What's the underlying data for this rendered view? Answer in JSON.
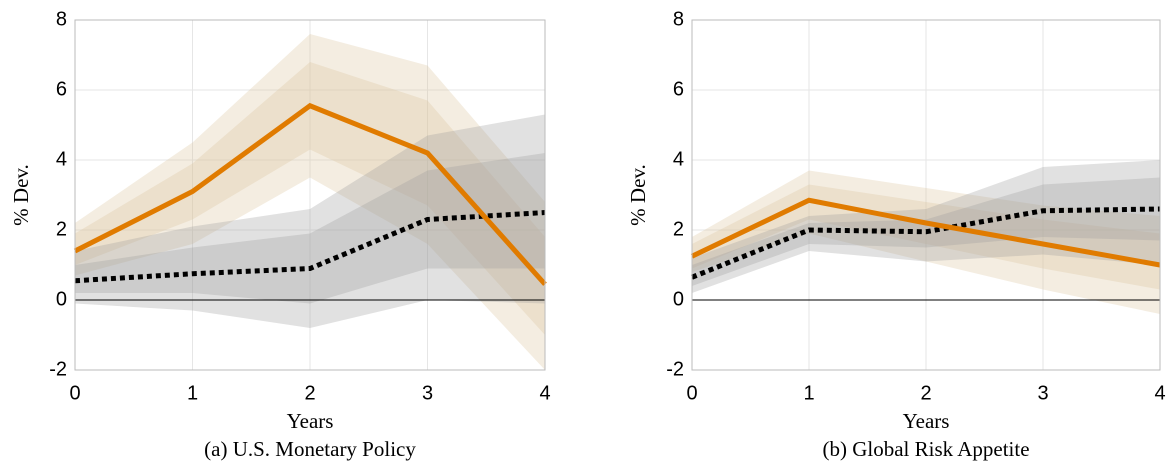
{
  "chart_data": [
    {
      "type": "line",
      "title": "(a) U.S. Monetary Policy",
      "xlabel": "Years",
      "ylabel": "% Dev.",
      "x": [
        0,
        1,
        2,
        3,
        4
      ],
      "xlim": [
        0,
        4
      ],
      "ylim": [
        -2,
        8
      ],
      "xticks": [
        0,
        1,
        2,
        3,
        4
      ],
      "yticks": [
        -2,
        0,
        2,
        4,
        6,
        8
      ],
      "grid": true,
      "series": [
        {
          "color": "#e07b00",
          "band_color": "#d9c29a",
          "dash": false,
          "values": [
            1.4,
            3.1,
            5.55,
            4.2,
            0.45
          ],
          "bands": [
            {
              "lower": [
                0.7,
                1.6,
                3.5,
                1.6,
                -2.0
              ],
              "upper": [
                2.2,
                4.5,
                7.6,
                6.7,
                2.8
              ]
            },
            {
              "lower": [
                1.0,
                2.3,
                4.3,
                2.7,
                -1.0
              ],
              "upper": [
                1.9,
                3.9,
                6.8,
                5.7,
                1.8
              ]
            }
          ]
        },
        {
          "color": "#000000",
          "band_color": "#9a9a9a",
          "dash": true,
          "values": [
            0.55,
            0.75,
            0.9,
            2.3,
            2.5
          ],
          "bands": [
            {
              "lower": [
                -0.1,
                -0.3,
                -0.8,
                0.0,
                -0.1
              ],
              "upper": [
                1.4,
                2.1,
                2.6,
                4.7,
                5.3
              ]
            },
            {
              "lower": [
                0.2,
                0.2,
                -0.1,
                0.9,
                0.9
              ],
              "upper": [
                1.0,
                1.5,
                1.9,
                3.7,
                4.2
              ]
            }
          ]
        }
      ]
    },
    {
      "type": "line",
      "title": "(b) Global Risk Appetite",
      "xlabel": "Years",
      "ylabel": "% Dev.",
      "x": [
        0,
        1,
        2,
        3,
        4
      ],
      "xlim": [
        0,
        4
      ],
      "ylim": [
        -2,
        8
      ],
      "xticks": [
        0,
        1,
        2,
        3,
        4
      ],
      "yticks": [
        -2,
        0,
        2,
        4,
        6,
        8
      ],
      "grid": true,
      "series": [
        {
          "color": "#e07b00",
          "band_color": "#d9c29a",
          "dash": false,
          "values": [
            1.25,
            2.85,
            2.2,
            1.6,
            1.0
          ],
          "bands": [
            {
              "lower": [
                0.8,
                1.9,
                1.1,
                0.3,
                -0.4
              ],
              "upper": [
                1.8,
                3.7,
                3.2,
                2.7,
                2.4
              ]
            },
            {
              "lower": [
                0.9,
                2.3,
                1.6,
                0.9,
                0.3
              ],
              "upper": [
                1.6,
                3.3,
                2.8,
                2.3,
                1.9
              ]
            }
          ]
        },
        {
          "color": "#000000",
          "band_color": "#9a9a9a",
          "dash": true,
          "values": [
            0.65,
            2.0,
            1.95,
            2.55,
            2.6
          ],
          "bands": [
            {
              "lower": [
                0.2,
                1.4,
                1.1,
                1.3,
                1.0
              ],
              "upper": [
                1.2,
                2.4,
                2.6,
                3.8,
                4.0
              ]
            },
            {
              "lower": [
                0.4,
                1.6,
                1.5,
                1.8,
                1.7
              ],
              "upper": [
                1.0,
                2.2,
                2.3,
                3.3,
                3.5
              ]
            }
          ]
        }
      ]
    }
  ]
}
